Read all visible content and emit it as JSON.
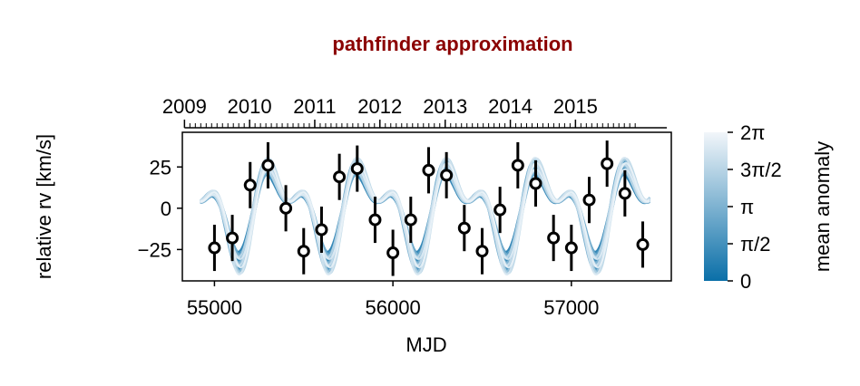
{
  "chart_data": {
    "type": "scatter",
    "title": "pathfinder approximation",
    "title_color": "#8b0000",
    "xlabel": "MJD",
    "ylabel": "relative rv [km/s]",
    "xlim": [
      54820,
      57560
    ],
    "ylim": [
      -44,
      46
    ],
    "x_ticks": [
      55000,
      56000,
      57000
    ],
    "x_tick_labels": [
      "55000",
      "56000",
      "57000"
    ],
    "y_ticks": [
      -25,
      0,
      25
    ],
    "y_tick_labels": [
      "−25",
      "0",
      "25"
    ],
    "top_axis": {
      "labels": [
        "2009",
        "2010",
        "2011",
        "2012",
        "2013",
        "2014",
        "2015"
      ],
      "year_mjd": [
        54832,
        55197,
        55562,
        55927,
        56293,
        56658,
        57023,
        57388
      ],
      "minor": "months"
    },
    "grid": false,
    "series": [
      {
        "kind": "errorbar",
        "x": [
          55000,
          55100,
          55200,
          55300,
          55400,
          55500,
          55600,
          55700,
          55800,
          55900,
          56000,
          56100,
          56200,
          56300,
          56400,
          56500,
          56600,
          56700,
          56800,
          56900,
          57000,
          57100,
          57200,
          57300,
          57400
        ],
        "y": [
          -24,
          -18,
          14,
          26,
          0,
          -26,
          -13,
          19,
          24,
          -7,
          -27,
          -7,
          23,
          20,
          -12,
          -26,
          -1,
          26,
          15,
          -18,
          -24,
          5,
          27,
          9,
          -22
        ],
        "yerr": 14,
        "marker_fill": "#ffffff",
        "marker_edge": "#000000"
      },
      {
        "kind": "model_curves",
        "period_days": 500,
        "amplitude_range": [
          24,
          37
        ],
        "color_by": "mean anomaly",
        "count": 20
      }
    ],
    "colorbar": {
      "label": "mean anomaly",
      "range": [
        0,
        6.283
      ],
      "ticks": [
        0,
        1.5708,
        3.1416,
        4.7124,
        6.2832
      ],
      "tick_labels": [
        "0",
        "π/2",
        "π",
        "3π/2",
        "2π"
      ],
      "color_low": "#0a6fa8",
      "color_high": "#f2f6fa"
    }
  }
}
